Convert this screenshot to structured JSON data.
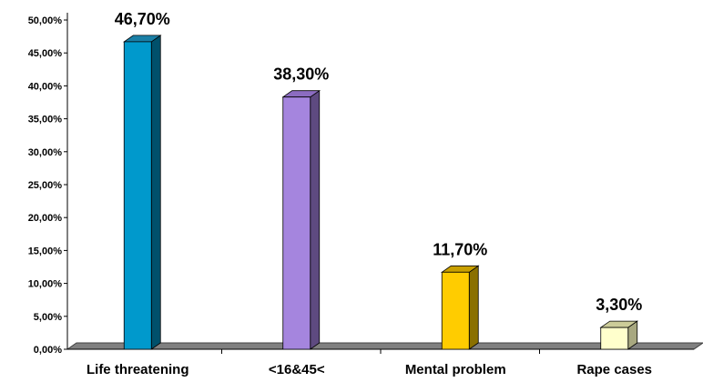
{
  "chart_data": {
    "type": "bar",
    "categories": [
      "Life threatening",
      "<16&45<",
      "Mental problem",
      "Rape cases"
    ],
    "values": [
      46.7,
      38.3,
      11.7,
      3.3
    ],
    "value_labels": [
      "46,70%",
      "38,30%",
      "11,70%",
      "3,30%"
    ],
    "ylim": [
      0,
      50
    ],
    "yticks": [
      0,
      5,
      10,
      15,
      20,
      25,
      30,
      35,
      40,
      45,
      50
    ],
    "ytick_labels": [
      "0,00%",
      "5,00%",
      "10,00%",
      "15,00%",
      "20,00%",
      "25,00%",
      "30,00%",
      "35,00%",
      "40,00%",
      "45,00%",
      "50,00%"
    ],
    "title": "",
    "xlabel": "",
    "ylabel": "",
    "grid": false,
    "legend": "none",
    "style": "3d-column",
    "colors": {
      "bar_fronts": [
        "#0099CC",
        "#A585DE",
        "#FFCC00",
        "#FFFFCC"
      ],
      "bar_tops": [
        "#1A7FA6",
        "#8B6CC0",
        "#C9A000",
        "#CCCC99"
      ],
      "bar_sides": [
        "#00506B",
        "#5E4A80",
        "#8A7000",
        "#A8A880"
      ],
      "floor": "#808080",
      "floor_edge": "#404040",
      "axis": "#000000"
    }
  }
}
